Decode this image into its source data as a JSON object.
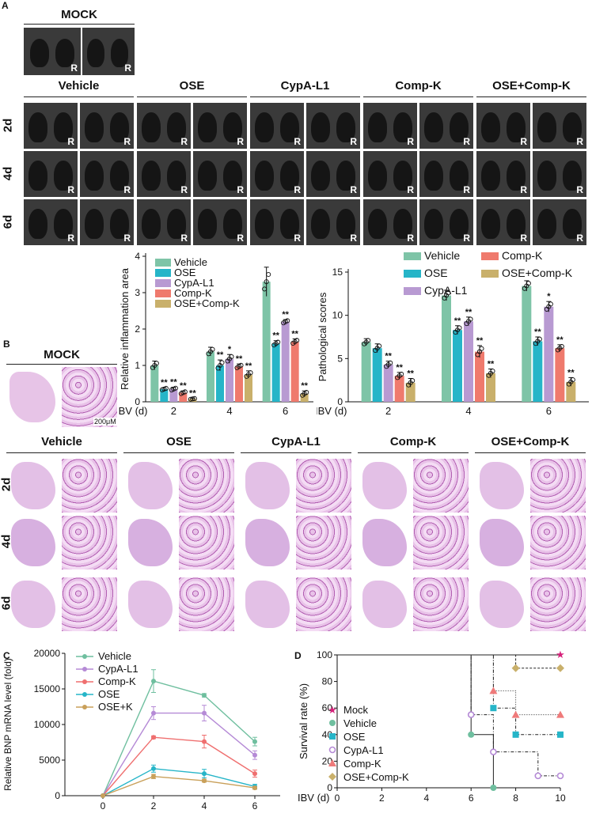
{
  "panel_letters": {
    "a": "A",
    "b": "B",
    "c": "C",
    "d": "D"
  },
  "ct": {
    "mock_title": "MOCK",
    "groups": [
      "Vehicle",
      "OSE",
      "CypA-L1",
      "Comp-K",
      "OSE+Comp-K"
    ],
    "days": [
      "2d",
      "4d",
      "6d"
    ],
    "marker": "R"
  },
  "he": {
    "mock_title": "MOCK",
    "scale_bar": "200μM",
    "groups": [
      "Vehicle",
      "OSE",
      "CypA-L1",
      "Comp-K",
      "OSE+Comp-K"
    ],
    "days": [
      "2d",
      "4d",
      "6d"
    ]
  },
  "colors": {
    "Vehicle": "#7ec4a7",
    "OSE": "#26b5c8",
    "CypA-L1": "#b89ad2",
    "Comp-K": "#ef7a6d",
    "OSE+Comp-K": "#c9b06b",
    "mock": "#d6207a"
  },
  "chart_data": [
    {
      "type": "bar",
      "ylabel": "Relative inflammation area",
      "xaxis_prefix": "IBV (d)",
      "categories": [
        "2",
        "4",
        "6"
      ],
      "ylim": [
        0,
        4
      ],
      "yticks": [
        "0",
        "1",
        "2",
        "3",
        "4"
      ],
      "legend": [
        "Vehicle",
        "OSE",
        "CypA-L1",
        "Comp-K",
        "OSE+Comp-K"
      ],
      "series": [
        {
          "name": "Vehicle",
          "values": [
            1.0,
            1.38,
            3.3
          ],
          "errors": [
            0.12,
            0.12,
            0.4
          ],
          "sig": [
            "",
            "",
            ""
          ]
        },
        {
          "name": "OSE",
          "values": [
            0.35,
            1.0,
            1.6
          ],
          "errors": [
            0.04,
            0.15,
            0.08
          ],
          "sig": [
            "**",
            "**",
            "**"
          ]
        },
        {
          "name": "CypA-L1",
          "values": [
            0.35,
            1.18,
            2.2
          ],
          "errors": [
            0.05,
            0.12,
            0.06
          ],
          "sig": [
            "**",
            "*",
            "**"
          ]
        },
        {
          "name": "Comp-K",
          "values": [
            0.25,
            0.97,
            1.65
          ],
          "errors": [
            0.05,
            0.07,
            0.08
          ],
          "sig": [
            "**",
            "**",
            "**"
          ]
        },
        {
          "name": "OSE+Comp-K",
          "values": [
            0.08,
            0.75,
            0.22
          ],
          "errors": [
            0.02,
            0.1,
            0.08
          ],
          "sig": [
            "**",
            "**",
            "**"
          ]
        }
      ]
    },
    {
      "type": "bar",
      "ylabel": "Pathological scores",
      "xaxis_prefix": "IBV (d)",
      "categories": [
        "2",
        "4",
        "6"
      ],
      "ylim": [
        0,
        15
      ],
      "yticks": [
        "0",
        "5",
        "10",
        "15"
      ],
      "legend": [
        "Vehicle",
        "OSE",
        "CypA-L1",
        "Comp-K",
        "OSE+Comp-K"
      ],
      "series": [
        {
          "name": "Vehicle",
          "values": [
            6.9,
            12.3,
            13.4
          ],
          "errors": [
            0.4,
            0.6,
            0.6
          ],
          "sig": [
            "",
            "",
            ""
          ]
        },
        {
          "name": "OSE",
          "values": [
            6.2,
            8.3,
            7.0
          ],
          "errors": [
            0.5,
            0.5,
            0.5
          ],
          "sig": [
            "",
            "**",
            "**"
          ]
        },
        {
          "name": "CypA-L1",
          "values": [
            4.3,
            9.3,
            11.0
          ],
          "errors": [
            0.4,
            0.5,
            0.6
          ],
          "sig": [
            "**",
            "**",
            "*"
          ]
        },
        {
          "name": "Comp-K",
          "values": [
            3.0,
            5.8,
            6.2
          ],
          "errors": [
            0.4,
            0.7,
            0.4
          ],
          "sig": [
            "**",
            "**",
            "**"
          ]
        },
        {
          "name": "OSE+Comp-K",
          "values": [
            2.2,
            3.3,
            2.3
          ],
          "errors": [
            0.5,
            0.5,
            0.5
          ],
          "sig": [
            "**",
            "**",
            "**"
          ]
        }
      ]
    },
    {
      "type": "line",
      "ylabel": "Relative BNP mRNA level (fold)",
      "x": [
        0,
        2,
        4,
        6
      ],
      "xticks": [
        "0",
        "2",
        "4",
        "6"
      ],
      "xlim": [
        -1.5,
        7
      ],
      "ylim": [
        0,
        20000
      ],
      "yticks": [
        "0",
        "5000",
        "10000",
        "15000",
        "20000"
      ],
      "series": [
        {
          "name": "Vehicle",
          "color": "#6fbf9f",
          "marker": "circle",
          "values": [
            0,
            16100,
            14100,
            7600
          ],
          "errors": [
            0,
            1600,
            250,
            600
          ]
        },
        {
          "name": "CypA-L1",
          "color": "#b58ad6",
          "marker": "tri-down",
          "values": [
            0,
            11600,
            11600,
            5700
          ],
          "errors": [
            0,
            900,
            1100,
            600
          ]
        },
        {
          "name": "Comp-K",
          "color": "#ef6f6f",
          "marker": "square",
          "values": [
            0,
            8200,
            7600,
            3100
          ],
          "errors": [
            0,
            200,
            900,
            500
          ]
        },
        {
          "name": "OSE",
          "color": "#26b5c8",
          "marker": "tri-up",
          "values": [
            0,
            3800,
            3100,
            1300
          ],
          "errors": [
            0,
            500,
            600,
            300
          ]
        },
        {
          "name": "OSE+K",
          "color": "#c9a05a",
          "marker": "cross",
          "values": [
            0,
            2700,
            2100,
            1100
          ],
          "errors": [
            0,
            300,
            200,
            200
          ]
        }
      ]
    },
    {
      "type": "line",
      "subtype": "survival",
      "ylabel": "Survival rate (%)",
      "xaxis_prefix": "IBV (d)",
      "xticks": [
        "0",
        "2",
        "4",
        "6",
        "8",
        "10"
      ],
      "xlim": [
        0,
        10
      ],
      "ylim": [
        0,
        100
      ],
      "yticks": [
        "0",
        "20",
        "40",
        "60",
        "80",
        "100"
      ],
      "series": [
        {
          "name": "Mock",
          "color": "#d6207a",
          "marker": "star",
          "steps": [
            [
              0,
              100
            ],
            [
              10,
              100
            ]
          ],
          "points": [
            [
              10,
              100
            ]
          ],
          "dash": "none"
        },
        {
          "name": "Vehicle",
          "color": "#6fbf9f",
          "marker": "circle",
          "steps": [
            [
              0,
              100
            ],
            [
              6,
              100
            ],
            [
              6,
              40
            ],
            [
              7,
              40
            ],
            [
              7,
              0
            ]
          ],
          "points": [
            [
              6,
              40
            ],
            [
              7,
              0
            ]
          ],
          "dash": "none"
        },
        {
          "name": "OSE",
          "color": "#26b5c8",
          "marker": "square",
          "steps": [
            [
              0,
              100
            ],
            [
              7,
              100
            ],
            [
              7,
              60
            ],
            [
              8,
              60
            ],
            [
              8,
              40
            ],
            [
              10,
              40
            ]
          ],
          "points": [
            [
              7,
              60
            ],
            [
              8,
              40
            ],
            [
              10,
              40
            ]
          ],
          "dash": "4,2,1,2"
        },
        {
          "name": "CypA-L1",
          "color": "#b58ad6",
          "marker": "open-circle",
          "steps": [
            [
              0,
              100
            ],
            [
              6,
              100
            ],
            [
              6,
              55
            ],
            [
              7,
              55
            ],
            [
              7,
              27
            ],
            [
              9,
              27
            ],
            [
              9,
              9
            ],
            [
              10,
              9
            ]
          ],
          "points": [
            [
              6,
              55
            ],
            [
              7,
              27
            ],
            [
              9,
              9
            ],
            [
              10,
              9
            ]
          ],
          "dash": "4,2,1,2"
        },
        {
          "name": "Comp-K",
          "color": "#ef7a7a",
          "marker": "triangle",
          "steps": [
            [
              0,
              100
            ],
            [
              7,
              100
            ],
            [
              7,
              73
            ],
            [
              8,
              73
            ],
            [
              8,
              55
            ],
            [
              10,
              55
            ]
          ],
          "points": [
            [
              7,
              73
            ],
            [
              8,
              55
            ],
            [
              10,
              55
            ]
          ],
          "dash": "1,2"
        },
        {
          "name": "OSE+Comp-K",
          "color": "#c9b06b",
          "marker": "diamond",
          "steps": [
            [
              0,
              100
            ],
            [
              8,
              100
            ],
            [
              8,
              90
            ],
            [
              10,
              90
            ]
          ],
          "points": [
            [
              8,
              90
            ],
            [
              10,
              90
            ]
          ],
          "dash": "3,2"
        }
      ]
    }
  ]
}
